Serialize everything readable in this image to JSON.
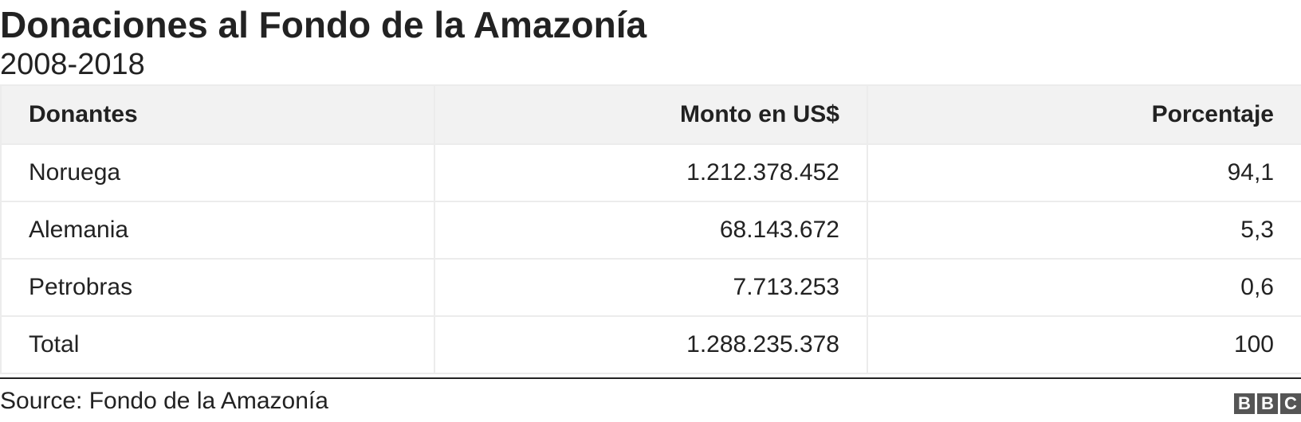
{
  "title": "Donaciones al Fondo de la Amazonía",
  "subtitle": "2008-2018",
  "source": "Source: Fondo de la Amazonía",
  "logo": "BBC",
  "chart_data": {
    "type": "table",
    "columns": [
      "Donantes",
      "Monto en US$",
      "Porcentaje"
    ],
    "rows": [
      [
        "Noruega",
        "1.212.378.452",
        "94,1"
      ],
      [
        "Alemania",
        "68.143.672",
        "5,3"
      ],
      [
        "Petrobras",
        "7.713.253",
        "0,6"
      ],
      [
        "Total",
        "1.288.235.378",
        "100"
      ]
    ]
  }
}
